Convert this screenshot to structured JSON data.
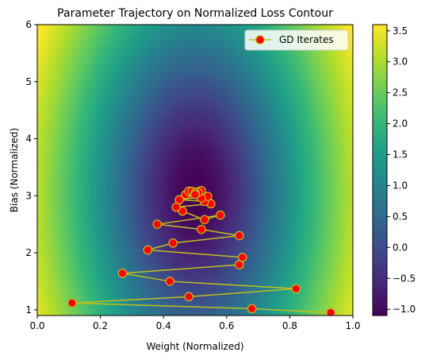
{
  "chart_data": {
    "type": "scatter",
    "title": "Parameter Trajectory on Normalized Loss Contour",
    "xlabel": "Weight (Normalized)",
    "ylabel": "Bias (Normalized)",
    "xlim": [
      0.0,
      1.0
    ],
    "ylim": [
      0.9,
      6.0
    ],
    "xticks": [
      "0.0",
      "0.2",
      "0.4",
      "0.6",
      "0.8",
      "1.0"
    ],
    "yticks": [
      "1",
      "2",
      "3",
      "4",
      "5",
      "6"
    ],
    "grid": false,
    "legend_position": "top-right",
    "background": {
      "type": "heatmap",
      "colormap": "viridis",
      "min_center": [
        0.5,
        3.05
      ],
      "range": [
        -1.1,
        3.6
      ]
    },
    "colorbar": {
      "ticks": [
        "−1.0",
        "−0.5",
        "0.0",
        "0.5",
        "1.0",
        "1.5",
        "2.0",
        "2.5",
        "3.0",
        "3.5"
      ],
      "tick_values": [
        -1.0,
        -0.5,
        0.0,
        0.5,
        1.0,
        1.5,
        2.0,
        2.5,
        3.0,
        3.5
      ]
    },
    "series": [
      {
        "name": "GD Iterates",
        "line_color": "#bfbf1f",
        "marker_fill": "#ff0000",
        "marker_edge": "#bfbf1f",
        "x": [
          0.93,
          0.68,
          0.11,
          0.48,
          0.82,
          0.42,
          0.27,
          0.64,
          0.65,
          0.35,
          0.43,
          0.64,
          0.52,
          0.38,
          0.58,
          0.53,
          0.46,
          0.44,
          0.55,
          0.53,
          0.45,
          0.54,
          0.47,
          0.52,
          0.49,
          0.51,
          0.48,
          0.52,
          0.49,
          0.51,
          0.5,
          0.5
        ],
        "y": [
          0.95,
          1.02,
          1.12,
          1.23,
          1.37,
          1.5,
          1.64,
          1.79,
          1.92,
          2.05,
          2.17,
          2.3,
          2.41,
          2.5,
          2.66,
          2.58,
          2.73,
          2.8,
          2.86,
          2.9,
          2.93,
          2.99,
          3.02,
          2.96,
          3.05,
          3.07,
          3.08,
          3.09,
          3.08,
          3.06,
          3.05,
          3.02
        ]
      }
    ]
  }
}
